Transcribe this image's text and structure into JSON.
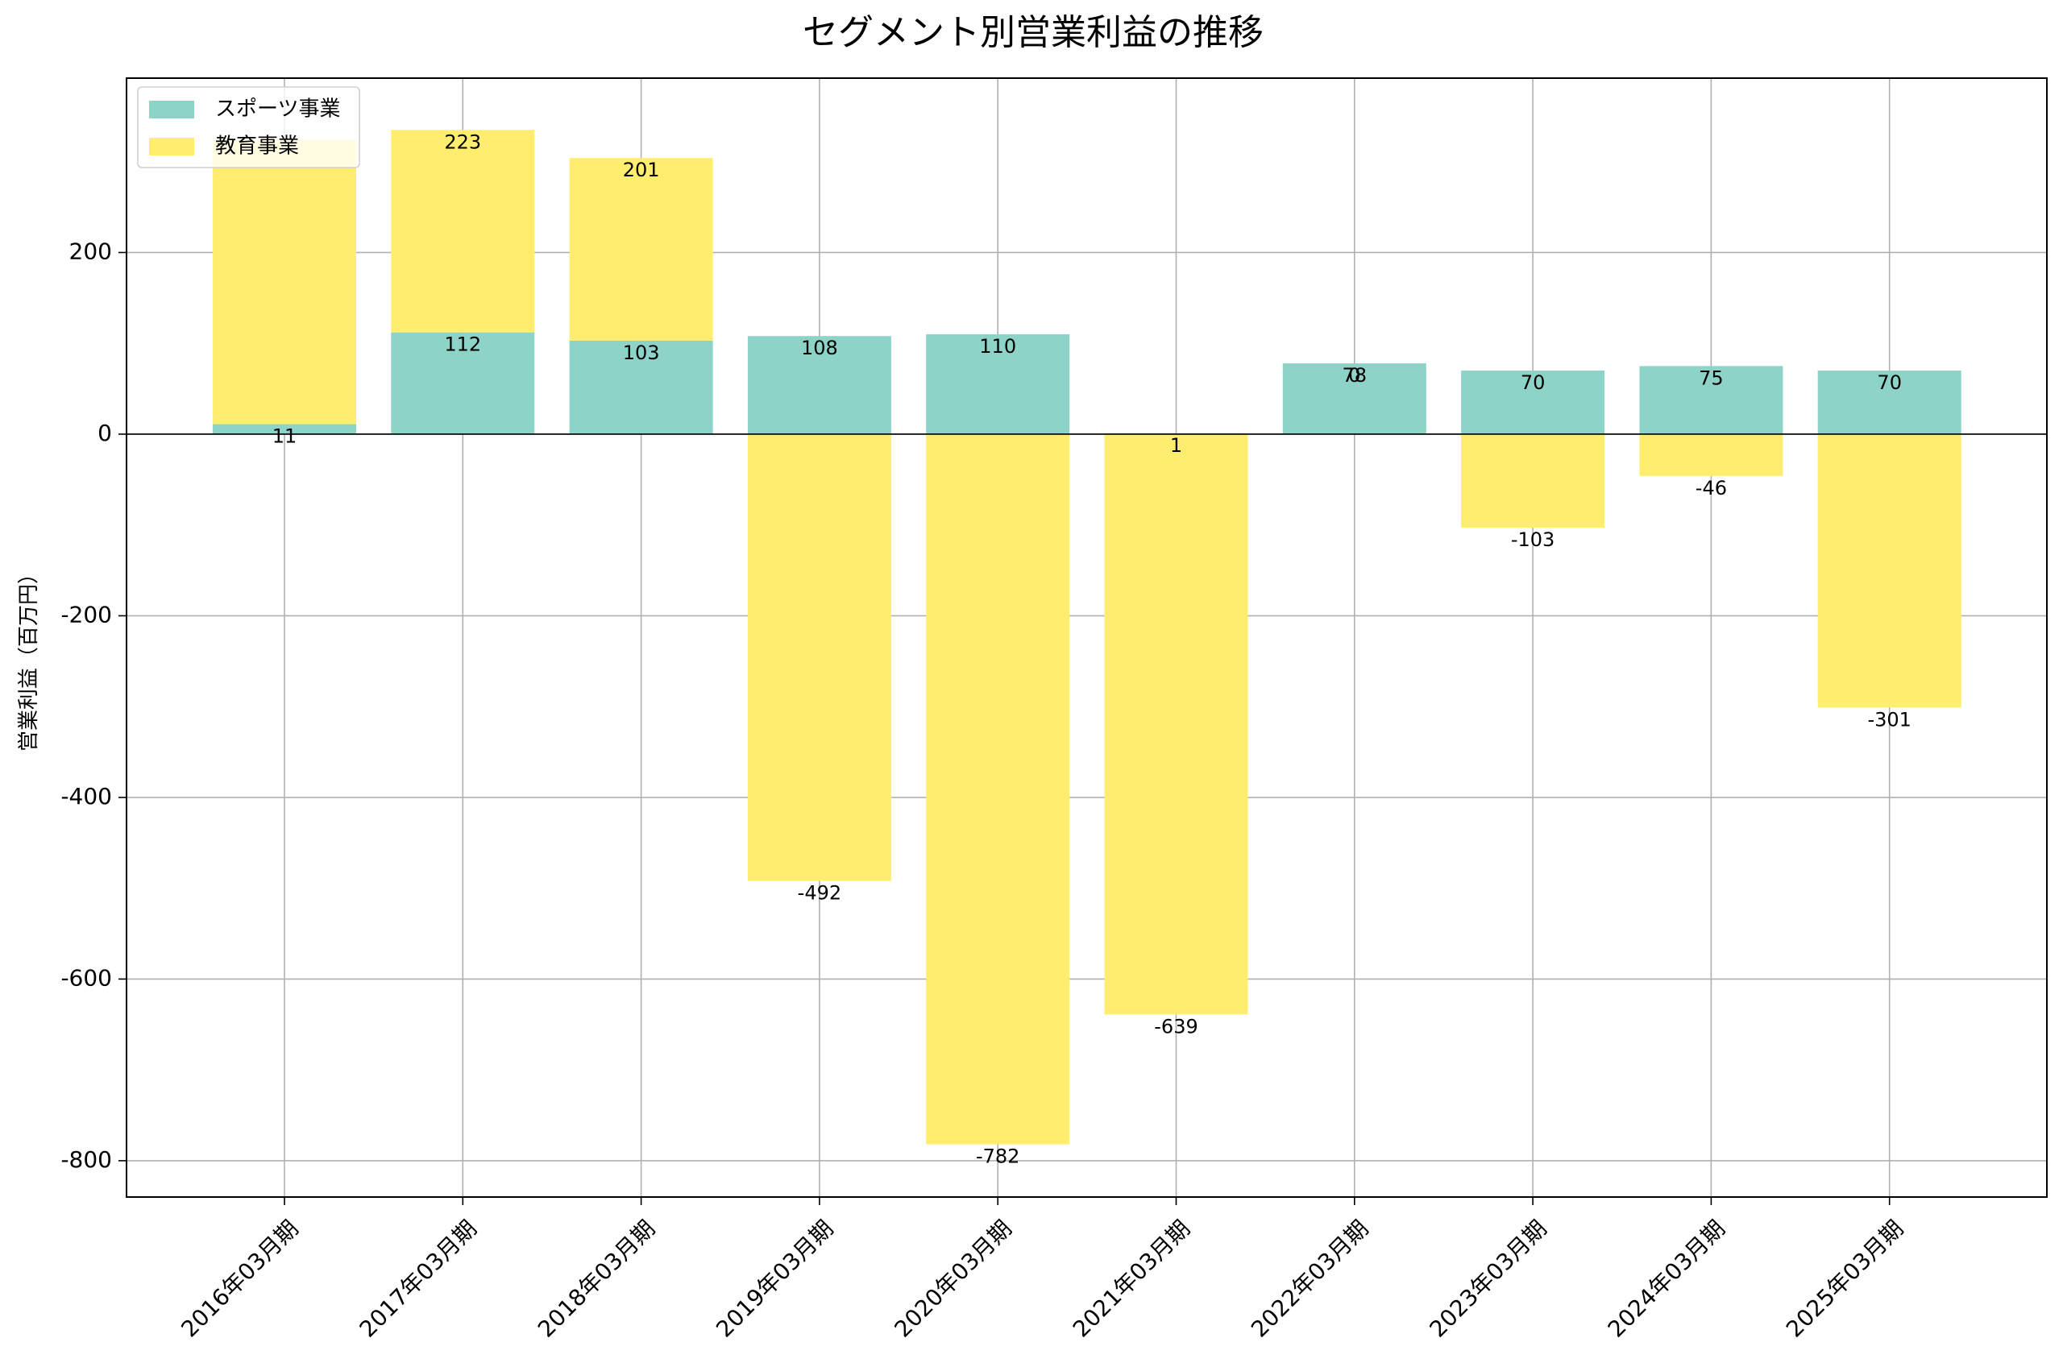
{
  "chart_data": {
    "type": "bar",
    "stacked": true,
    "title": "セグメント別営業利益の推移",
    "xlabel": "",
    "ylabel": "営業利益（百万円）",
    "ylim": [
      -840,
      392
    ],
    "yticks": [
      -800,
      -600,
      -400,
      -200,
      0,
      200
    ],
    "ytick_labels": [
      "-800",
      "-600",
      "-400",
      "-200",
      "0",
      "200"
    ],
    "grid": true,
    "legend": "top-left",
    "categories": [
      "2016年03月期",
      "2017年03月期",
      "2018年03月期",
      "2019年03月期",
      "2020年03月期",
      "2021年03月期",
      "2022年03月期",
      "2023年03月期",
      "2024年03月期",
      "2025年03月期"
    ],
    "series": [
      {
        "name": "スポーツ事業",
        "color": "#8dd3c7",
        "values": [
          11,
          112,
          103,
          108,
          110,
          1,
          78,
          70,
          75,
          70
        ],
        "labels": [
          "11",
          "112",
          "103",
          "108",
          "110",
          "1",
          "78",
          "70",
          "75",
          "70"
        ]
      },
      {
        "name": "教育事業",
        "color": "#ffed6f",
        "values": [
          313,
          223,
          201,
          -492,
          -782,
          -639,
          0,
          -103,
          -46,
          -301
        ],
        "labels": [
          "",
          "223",
          "201",
          "-492",
          "-782",
          "-639",
          "0",
          "-103",
          "-46",
          "-301"
        ]
      }
    ]
  }
}
